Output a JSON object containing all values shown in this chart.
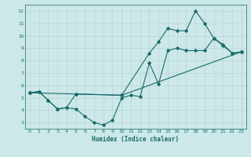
{
  "xlabel": "Humidex (Indice chaleur)",
  "bg_color": "#cce8e8",
  "grid_color": "#b8d4d4",
  "line_color": "#1a6b6b",
  "xlim": [
    -0.5,
    23.5
  ],
  "ylim": [
    2.5,
    12.5
  ],
  "xticks": [
    0,
    1,
    2,
    3,
    4,
    5,
    6,
    7,
    8,
    9,
    10,
    11,
    12,
    13,
    14,
    15,
    16,
    17,
    18,
    19,
    20,
    21,
    22,
    23
  ],
  "yticks": [
    3,
    4,
    5,
    6,
    7,
    8,
    9,
    10,
    11,
    12
  ],
  "line1_x": [
    0,
    1,
    2,
    3,
    4,
    5,
    6,
    7,
    8,
    9,
    10,
    11,
    12,
    13,
    14,
    15,
    16,
    17,
    18,
    19,
    20,
    21,
    22,
    23
  ],
  "line1_y": [
    5.4,
    5.5,
    4.8,
    4.1,
    4.2,
    4.1,
    3.5,
    3.0,
    2.8,
    3.2,
    5.0,
    5.2,
    5.1,
    7.8,
    6.1,
    8.8,
    9.0,
    8.8,
    8.8,
    8.8,
    9.8,
    9.2,
    8.6,
    8.7
  ],
  "line2_x": [
    0,
    1,
    2,
    3,
    4,
    5,
    10,
    13,
    14,
    15,
    16,
    17,
    18,
    19,
    20,
    21,
    22,
    23
  ],
  "line2_y": [
    5.4,
    5.5,
    4.8,
    4.1,
    4.2,
    5.3,
    5.2,
    8.6,
    9.5,
    10.6,
    10.4,
    10.4,
    12.0,
    11.0,
    9.8,
    9.3,
    8.6,
    8.7
  ],
  "line3_x": [
    0,
    5,
    10,
    23
  ],
  "line3_y": [
    5.4,
    5.3,
    5.2,
    8.7
  ]
}
